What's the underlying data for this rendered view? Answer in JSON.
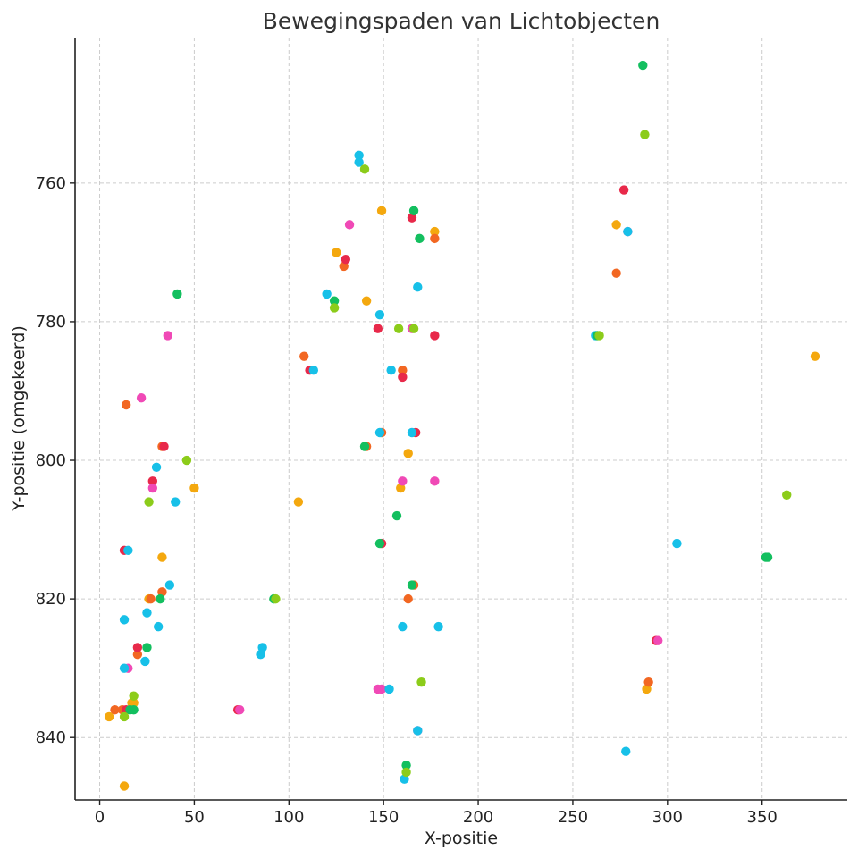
{
  "chart_data": {
    "type": "scatter",
    "title": "Bewegingspaden van Lichtobjecten",
    "xlabel": "X-positie",
    "ylabel": "Y-positie (omgekeerd)",
    "xlim": [
      -13,
      395
    ],
    "ylim": [
      849,
      739
    ],
    "y_inverted": true,
    "grid": true,
    "legend": "none",
    "x_ticks": [
      0,
      50,
      100,
      150,
      200,
      250,
      300,
      350
    ],
    "y_ticks": [
      760,
      780,
      800,
      820,
      840
    ],
    "series": [
      {
        "color": "#f4a80e",
        "points": [
          [
            149,
            764
          ],
          [
            177,
            767
          ],
          [
            125,
            770
          ],
          [
            141,
            777
          ],
          [
            273,
            766
          ],
          [
            378,
            785
          ],
          [
            163,
            799
          ],
          [
            159,
            804
          ],
          [
            50,
            804
          ],
          [
            105,
            806
          ],
          [
            33,
            814
          ],
          [
            26,
            820
          ],
          [
            17,
            835
          ],
          [
            18,
            835
          ],
          [
            5,
            837
          ],
          [
            289,
            833
          ],
          [
            13,
            847
          ]
        ]
      },
      {
        "color": "#f26722",
        "points": [
          [
            177,
            768
          ],
          [
            129,
            772
          ],
          [
            273,
            773
          ],
          [
            108,
            785
          ],
          [
            160,
            787
          ],
          [
            14,
            792
          ],
          [
            33,
            798
          ],
          [
            141,
            798
          ],
          [
            149,
            796
          ],
          [
            166,
            818
          ],
          [
            33,
            819
          ],
          [
            27,
            820
          ],
          [
            163,
            820
          ],
          [
            20,
            828
          ],
          [
            290,
            832
          ],
          [
            8,
            836
          ],
          [
            12,
            836
          ]
        ]
      },
      {
        "color": "#e8294a",
        "points": [
          [
            277,
            761
          ],
          [
            165,
            765
          ],
          [
            130,
            771
          ],
          [
            147,
            781
          ],
          [
            177,
            782
          ],
          [
            111,
            787
          ],
          [
            160,
            788
          ],
          [
            34,
            798
          ],
          [
            167,
            796
          ],
          [
            28,
            803
          ],
          [
            149,
            812
          ],
          [
            13,
            813
          ],
          [
            20,
            827
          ],
          [
            294,
            826
          ],
          [
            73,
            836
          ],
          [
            14,
            836
          ]
        ]
      },
      {
        "color": "#f049b6",
        "points": [
          [
            132,
            766
          ],
          [
            279,
            767
          ],
          [
            165,
            781
          ],
          [
            36,
            782
          ],
          [
            22,
            791
          ],
          [
            28,
            804
          ],
          [
            160,
            803
          ],
          [
            177,
            803
          ],
          [
            295,
            826
          ],
          [
            15,
            830
          ],
          [
            149,
            833
          ],
          [
            147,
            833
          ],
          [
            74,
            836
          ],
          [
            168,
            839
          ]
        ]
      },
      {
        "color": "#17c0e8",
        "points": [
          [
            137,
            756
          ],
          [
            137,
            757
          ],
          [
            279,
            767
          ],
          [
            168,
            775
          ],
          [
            120,
            776
          ],
          [
            148,
            779
          ],
          [
            262,
            782
          ],
          [
            113,
            787
          ],
          [
            154,
            787
          ],
          [
            165,
            796
          ],
          [
            148,
            796
          ],
          [
            30,
            801
          ],
          [
            40,
            806
          ],
          [
            305,
            812
          ],
          [
            15,
            813
          ],
          [
            37,
            818
          ],
          [
            13,
            823
          ],
          [
            25,
            822
          ],
          [
            31,
            824
          ],
          [
            160,
            824
          ],
          [
            179,
            824
          ],
          [
            86,
            827
          ],
          [
            85,
            828
          ],
          [
            24,
            829
          ],
          [
            13,
            830
          ],
          [
            153,
            833
          ],
          [
            168,
            839
          ],
          [
            278,
            842
          ],
          [
            161,
            846
          ]
        ]
      },
      {
        "color": "#13bf5f",
        "points": [
          [
            287,
            743
          ],
          [
            166,
            764
          ],
          [
            169,
            768
          ],
          [
            41,
            776
          ],
          [
            124,
            777
          ],
          [
            263,
            782
          ],
          [
            140,
            798
          ],
          [
            157,
            808
          ],
          [
            148,
            812
          ],
          [
            352,
            814
          ],
          [
            353,
            814
          ],
          [
            165,
            818
          ],
          [
            32,
            820
          ],
          [
            92,
            820
          ],
          [
            25,
            827
          ],
          [
            16,
            836
          ],
          [
            18,
            836
          ],
          [
            162,
            844
          ]
        ]
      },
      {
        "color": "#8ccc1a",
        "points": [
          [
            288,
            753
          ],
          [
            140,
            758
          ],
          [
            124,
            778
          ],
          [
            158,
            781
          ],
          [
            166,
            781
          ],
          [
            264,
            782
          ],
          [
            46,
            800
          ],
          [
            26,
            806
          ],
          [
            363,
            805
          ],
          [
            93,
            820
          ],
          [
            170,
            832
          ],
          [
            18,
            834
          ],
          [
            13,
            837
          ],
          [
            162,
            845
          ]
        ]
      }
    ]
  }
}
